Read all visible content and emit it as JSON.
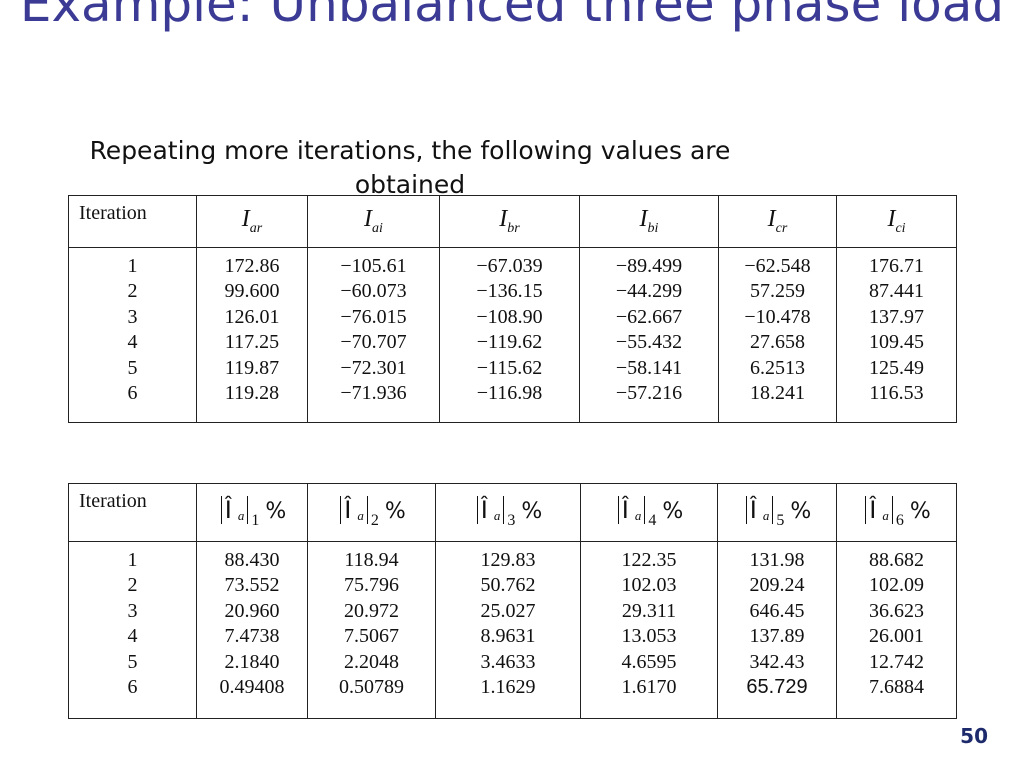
{
  "slide": {
    "title": "Example: Unbalanced three phase load",
    "subtitle": "Repeating more iterations, the following values are obtained",
    "page_number": "50"
  },
  "table1": {
    "header_iteration": "Iteration",
    "columns": [
      {
        "symbol": "I",
        "sub": "ar"
      },
      {
        "symbol": "I",
        "sub": "ai"
      },
      {
        "symbol": "I",
        "sub": "br"
      },
      {
        "symbol": "I",
        "sub": "bi"
      },
      {
        "symbol": "I",
        "sub": "cr"
      },
      {
        "symbol": "I",
        "sub": "ci"
      }
    ],
    "iterations": [
      "1",
      "2",
      "3",
      "4",
      "5",
      "6"
    ],
    "values": [
      [
        "172.86",
        "99.600",
        "126.01",
        "117.25",
        "119.87",
        "119.28"
      ],
      [
        "−105.61",
        "−60.073",
        "−76.015",
        "−70.707",
        "−72.301",
        "−71.936"
      ],
      [
        "−67.039",
        "−136.15",
        "−108.90",
        "−119.62",
        "−115.62",
        "−116.98"
      ],
      [
        "−89.499",
        "−44.299",
        "−62.667",
        "−55.432",
        "−58.141",
        "−57.216"
      ],
      [
        "−62.548",
        "57.259",
        "−10.478",
        "27.658",
        "6.2513",
        "18.241"
      ],
      [
        "176.71",
        "87.441",
        "137.97",
        "109.45",
        "125.49",
        "116.53"
      ]
    ]
  },
  "table2": {
    "header_iteration": "Iteration",
    "columns": [
      {
        "symbol": "Î",
        "sub": "a",
        "index": "1",
        "unit": "%"
      },
      {
        "symbol": "Î",
        "sub": "a",
        "index": "2",
        "unit": "%"
      },
      {
        "symbol": "Î",
        "sub": "a",
        "index": "3",
        "unit": "%"
      },
      {
        "symbol": "Î",
        "sub": "a",
        "index": "4",
        "unit": "%"
      },
      {
        "symbol": "Î",
        "sub": "a",
        "index": "5",
        "unit": "%"
      },
      {
        "symbol": "Î",
        "sub": "a",
        "index": "6",
        "unit": "%"
      }
    ],
    "iterations": [
      "1",
      "2",
      "3",
      "4",
      "5",
      "6"
    ],
    "values": [
      [
        "88.430",
        "73.552",
        "20.960",
        "7.4738",
        "2.1840",
        "0.49408"
      ],
      [
        "118.94",
        "75.796",
        "20.972",
        "7.5067",
        "2.2048",
        "0.50789"
      ],
      [
        "129.83",
        "50.762",
        "25.027",
        "8.9631",
        "3.4633",
        "1.1629"
      ],
      [
        "122.35",
        "102.03",
        "29.311",
        "13.053",
        "4.6595",
        "1.6170"
      ],
      [
        "131.98",
        "209.24",
        "646.45",
        "137.89",
        "342.43",
        "65.729"
      ],
      [
        "88.682",
        "102.09",
        "36.623",
        "26.001",
        "12.742",
        "7.6884"
      ]
    ]
  }
}
